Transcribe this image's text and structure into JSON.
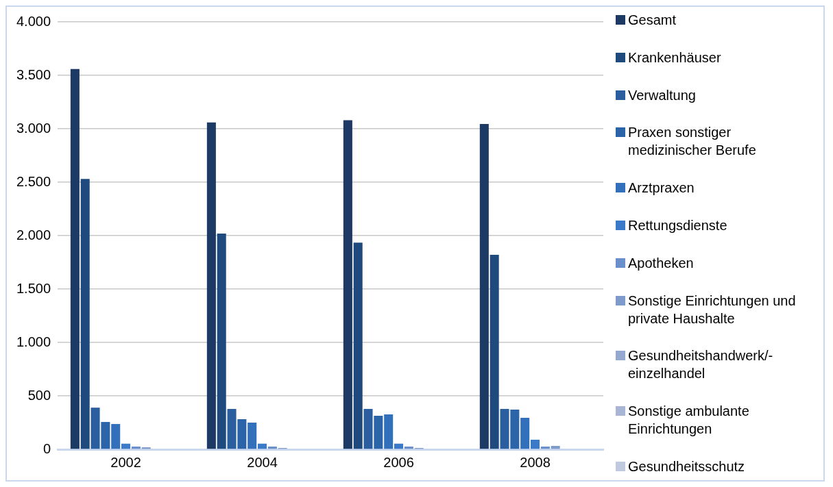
{
  "chart_data": {
    "type": "bar",
    "categories": [
      "2002",
      "2004",
      "2006",
      "2008"
    ],
    "series": [
      {
        "name": "Gesamt",
        "color": "#1c3a63",
        "values": [
          3560,
          3060,
          3080,
          3045
        ]
      },
      {
        "name": "Krankenhäuser",
        "color": "#1f4a7e",
        "values": [
          2530,
          2020,
          1935,
          1820
        ]
      },
      {
        "name": "Verwaltung",
        "color": "#2a5e9e",
        "values": [
          390,
          378,
          378,
          378
        ]
      },
      {
        "name": "Praxen sonstiger medizinischer Berufe",
        "color": "#2c64aa",
        "values": [
          256,
          282,
          314,
          372
        ]
      },
      {
        "name": "Arztpraxen",
        "color": "#3370bc",
        "values": [
          237,
          250,
          327,
          295
        ]
      },
      {
        "name": "Rettungsdienste",
        "color": "#3a7ac8",
        "values": [
          53,
          53,
          53,
          90
        ]
      },
      {
        "name": "Apotheken",
        "color": "#6a8fcb",
        "values": [
          26,
          26,
          26,
          26
        ]
      },
      {
        "name": "Sonstige Einrichtungen und private Haushalte",
        "color": "#7f9bcc",
        "values": [
          19,
          13,
          13,
          32
        ]
      },
      {
        "name": "Gesundheitshandwerk/-einzelhandel",
        "color": "#95a8cf",
        "values": [
          0,
          0,
          0,
          0
        ]
      },
      {
        "name": "Sonstige ambulante Einrichtungen",
        "color": "#a8b5d4",
        "values": [
          0,
          0,
          0,
          0
        ]
      },
      {
        "name": "Gesundheitsschutz",
        "color": "#c0c9dd",
        "values": [
          0,
          0,
          0,
          0
        ]
      }
    ],
    "ylim": [
      0,
      4000
    ],
    "yticks": [
      {
        "value": 0,
        "label": "0"
      },
      {
        "value": 500,
        "label": "500"
      },
      {
        "value": 1000,
        "label": "1.000"
      },
      {
        "value": 1500,
        "label": "1.500"
      },
      {
        "value": 2000,
        "label": "2.000"
      },
      {
        "value": 2500,
        "label": "2.500"
      },
      {
        "value": 3000,
        "label": "3.000"
      },
      {
        "value": 3500,
        "label": "3.500"
      },
      {
        "value": 4000,
        "label": "4.000"
      }
    ],
    "grid": "y",
    "legend": "right"
  }
}
